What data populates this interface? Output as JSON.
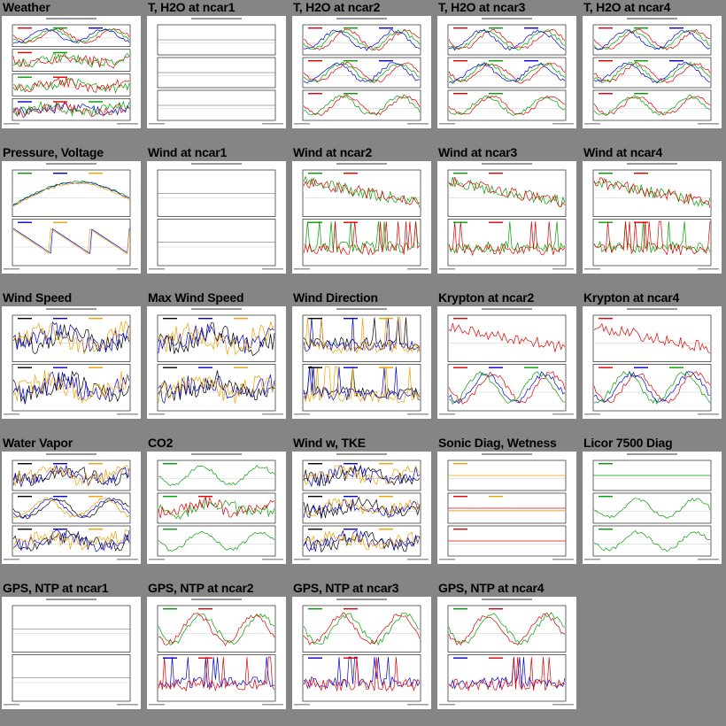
{
  "page": {
    "background_color": "#858585"
  },
  "series_colors": {
    "red": "#e00000",
    "green": "#00a000",
    "blue": "#0000d0",
    "orange": "#f0a000",
    "black": "#000000"
  },
  "tiles": [
    {
      "title": "Weather"
    },
    {
      "title": "T, H2O at ncar1"
    },
    {
      "title": "T, H2O at ncar2"
    },
    {
      "title": "T, H2O at ncar3"
    },
    {
      "title": "T, H2O at ncar4"
    },
    {
      "title": "Pressure, Voltage"
    },
    {
      "title": "Wind at ncar1"
    },
    {
      "title": "Wind at ncar2"
    },
    {
      "title": "Wind at ncar3"
    },
    {
      "title": "Wind at ncar4"
    },
    {
      "title": "Wind Speed"
    },
    {
      "title": "Max Wind Speed"
    },
    {
      "title": "Wind Direction"
    },
    {
      "title": "Krypton at ncar2"
    },
    {
      "title": "Krypton at ncar4"
    },
    {
      "title": "Water Vapor"
    },
    {
      "title": "CO2"
    },
    {
      "title": "Wind w, TKE"
    },
    {
      "title": "Sonic Diag, Wetness"
    },
    {
      "title": "Licor 7500 Diag"
    },
    {
      "title": "GPS, NTP at ncar1"
    },
    {
      "title": "GPS, NTP at ncar2"
    },
    {
      "title": "GPS, NTP at ncar3"
    },
    {
      "title": "GPS, NTP at ncar4"
    }
  ]
}
